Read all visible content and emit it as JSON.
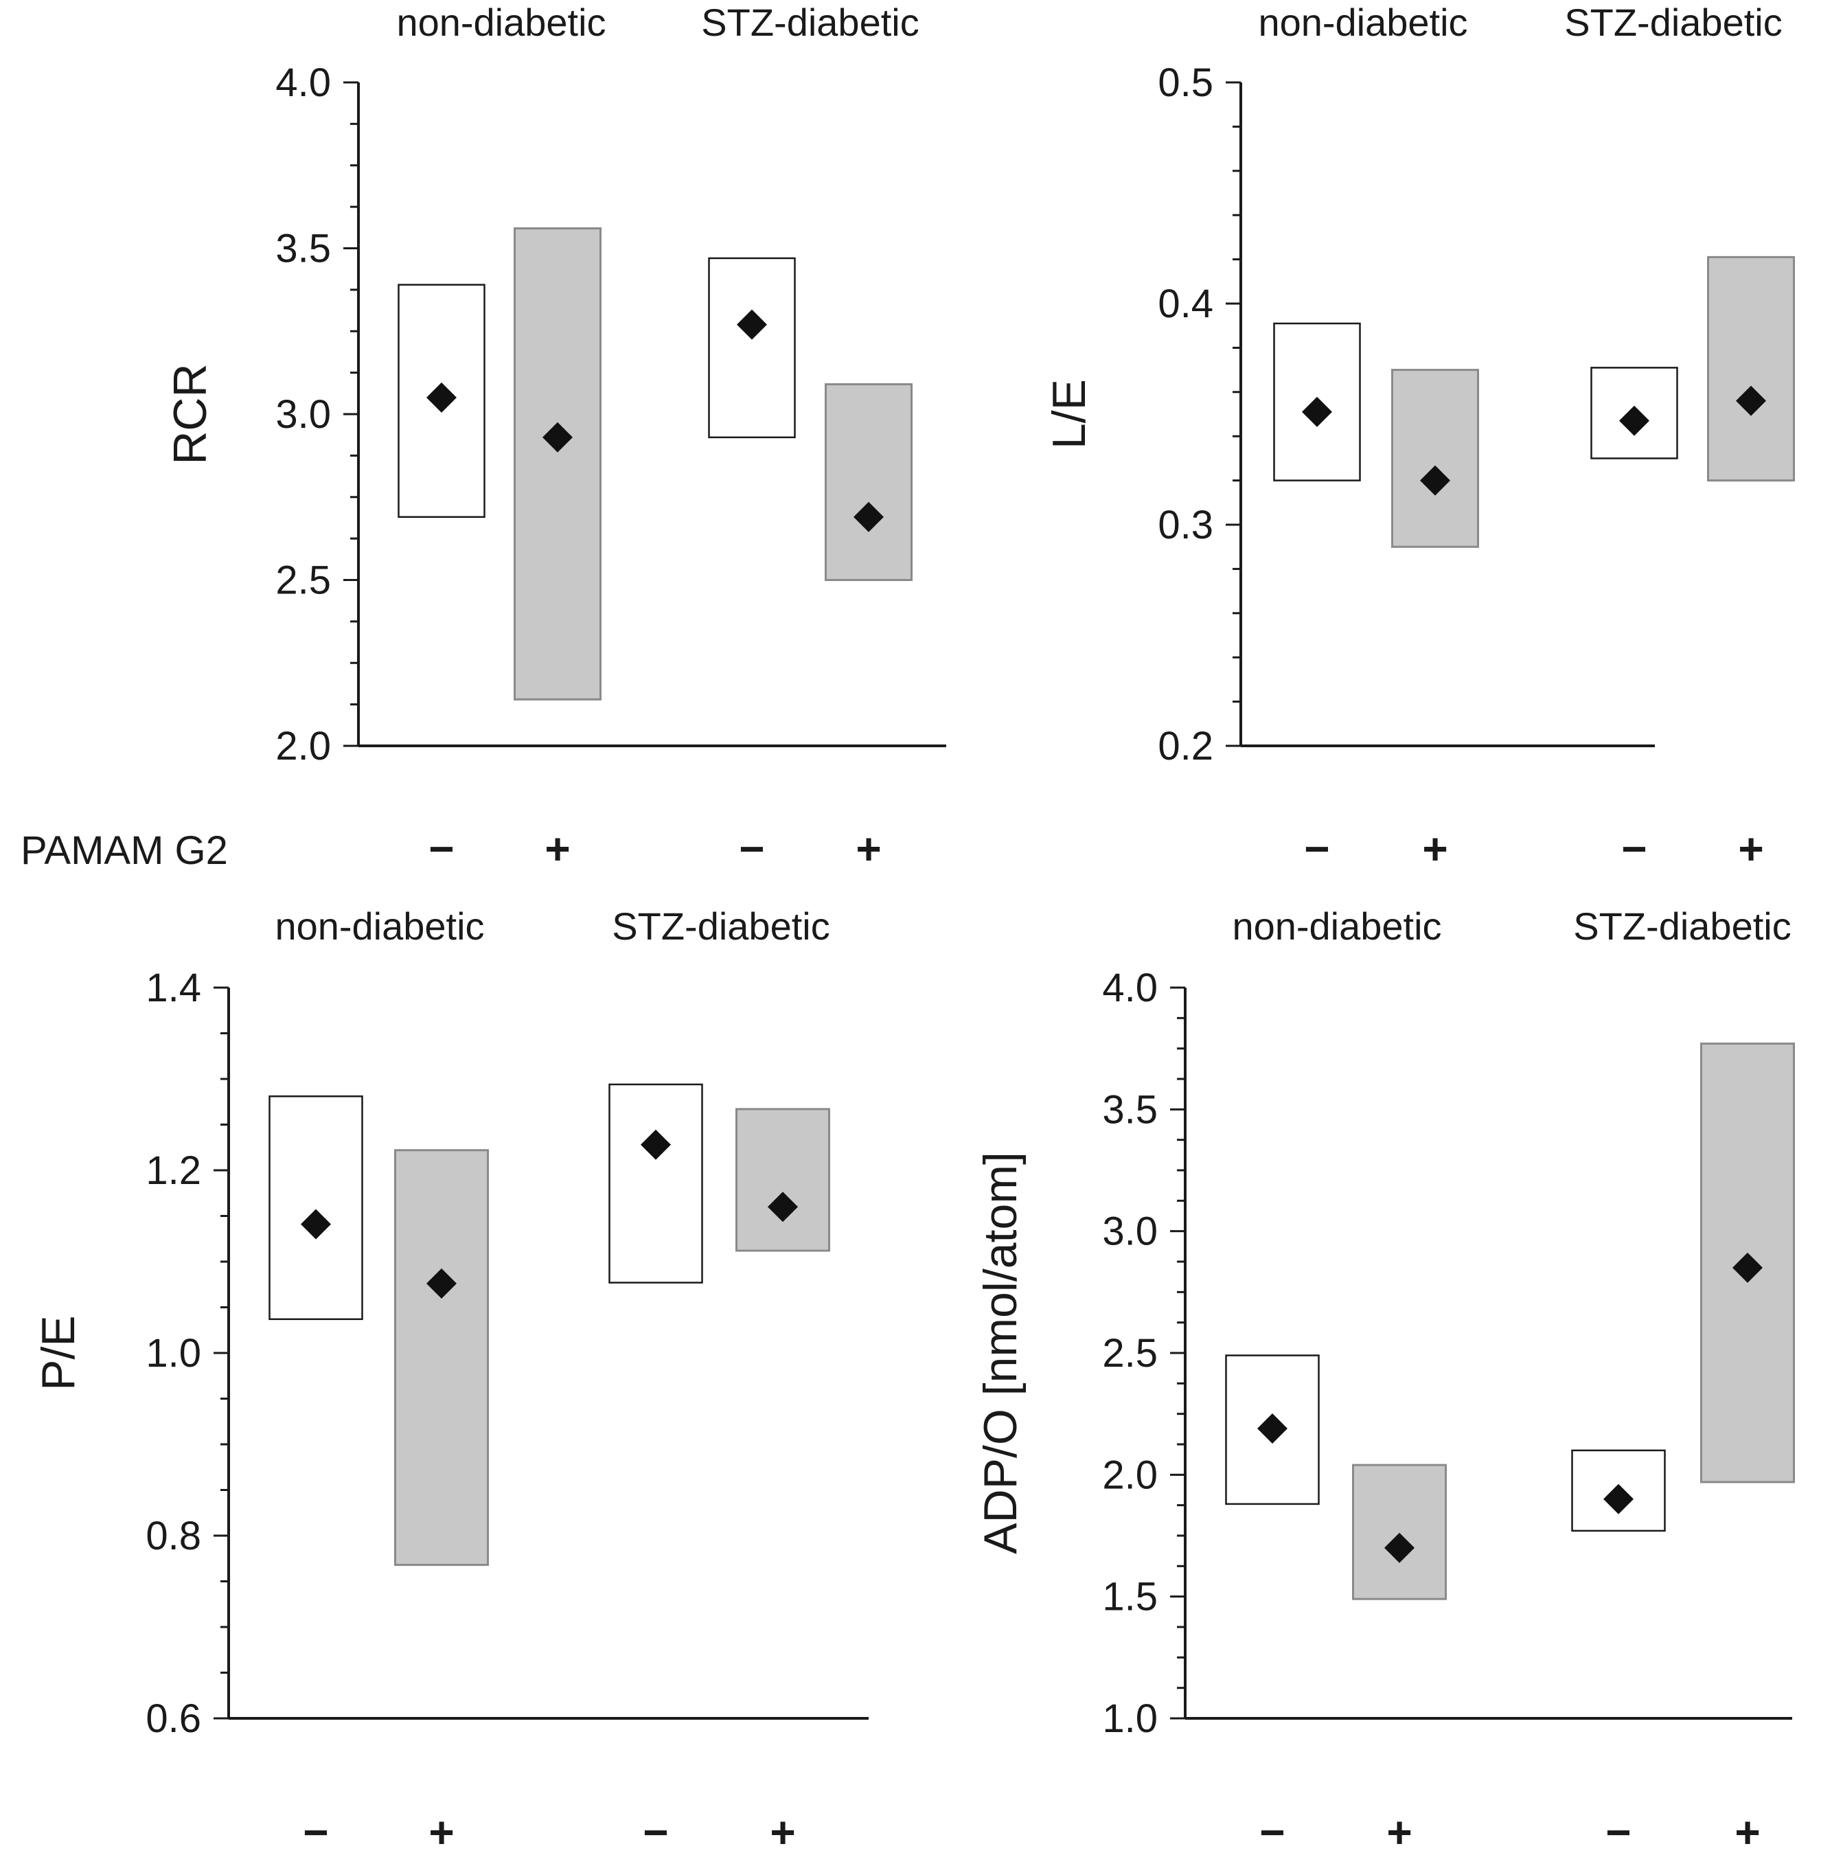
{
  "row_label": "PAMAM G2",
  "chart_data": [
    {
      "type": "box",
      "ylabel": "RCR",
      "ylim": [
        2.0,
        4.0
      ],
      "yticks": [
        "2.0",
        "2.5",
        "3.0",
        "3.5",
        "4.0"
      ],
      "groups": [
        "non-diabetic",
        "STZ-diabetic"
      ],
      "treatments": [
        "−",
        "+"
      ],
      "boxes": [
        {
          "group": "non-diabetic",
          "treatment": "−",
          "low": 2.69,
          "high": 3.39,
          "mean": 3.05,
          "color": "#ffffff"
        },
        {
          "group": "non-diabetic",
          "treatment": "+",
          "low": 2.14,
          "high": 3.56,
          "mean": 2.93,
          "color": "#c8c8c8"
        },
        {
          "group": "STZ-diabetic",
          "treatment": "−",
          "low": 2.93,
          "high": 3.47,
          "mean": 3.27,
          "color": "#ffffff"
        },
        {
          "group": "STZ-diabetic",
          "treatment": "+",
          "low": 2.5,
          "high": 3.09,
          "mean": 2.69,
          "color": "#c8c8c8"
        }
      ]
    },
    {
      "type": "box",
      "ylabel": "L/E",
      "ylim": [
        0.2,
        0.5
      ],
      "yticks": [
        "0.2",
        "0.3",
        "0.4",
        "0.5"
      ],
      "groups": [
        "non-diabetic",
        "STZ-diabetic"
      ],
      "treatments": [
        "−",
        "+"
      ],
      "boxes": [
        {
          "group": "non-diabetic",
          "treatment": "−",
          "low": 0.32,
          "high": 0.391,
          "mean": 0.351,
          "color": "#ffffff"
        },
        {
          "group": "non-diabetic",
          "treatment": "+",
          "low": 0.29,
          "high": 0.37,
          "mean": 0.32,
          "color": "#c8c8c8"
        },
        {
          "group": "STZ-diabetic",
          "treatment": "−",
          "low": 0.33,
          "high": 0.371,
          "mean": 0.347,
          "color": "#ffffff"
        },
        {
          "group": "STZ-diabetic",
          "treatment": "+",
          "low": 0.32,
          "high": 0.421,
          "mean": 0.356,
          "color": "#c8c8c8"
        }
      ]
    },
    {
      "type": "box",
      "ylabel": "P/E",
      "ylim": [
        0.6,
        1.4
      ],
      "yticks": [
        "0.6",
        "0.8",
        "1.0",
        "1.2",
        "1.4"
      ],
      "groups": [
        "non-diabetic",
        "STZ-diabetic"
      ],
      "treatments": [
        "−",
        "+"
      ],
      "boxes": [
        {
          "group": "non-diabetic",
          "treatment": "−",
          "low": 1.037,
          "high": 1.281,
          "mean": 1.141,
          "color": "#ffffff"
        },
        {
          "group": "non-diabetic",
          "treatment": "+",
          "low": 0.768,
          "high": 1.222,
          "mean": 1.076,
          "color": "#c8c8c8"
        },
        {
          "group": "STZ-diabetic",
          "treatment": "−",
          "low": 1.077,
          "high": 1.294,
          "mean": 1.228,
          "color": "#ffffff"
        },
        {
          "group": "STZ-diabetic",
          "treatment": "+",
          "low": 1.112,
          "high": 1.267,
          "mean": 1.16,
          "color": "#c8c8c8"
        }
      ]
    },
    {
      "type": "box",
      "ylabel": "ADP/O [nmol/atom]",
      "ylim": [
        1.0,
        4.0
      ],
      "yticks": [
        "1.0",
        "1.5",
        "2.0",
        "2.5",
        "3.0",
        "3.5",
        "4.0"
      ],
      "groups": [
        "non-diabetic",
        "STZ-diabetic"
      ],
      "treatments": [
        "−",
        "+"
      ],
      "boxes": [
        {
          "group": "non-diabetic",
          "treatment": "−",
          "low": 1.88,
          "high": 2.49,
          "mean": 2.19,
          "color": "#ffffff"
        },
        {
          "group": "non-diabetic",
          "treatment": "+",
          "low": 1.49,
          "high": 2.04,
          "mean": 1.7,
          "color": "#c8c8c8"
        },
        {
          "group": "STZ-diabetic",
          "treatment": "−",
          "low": 1.77,
          "high": 2.1,
          "mean": 1.9,
          "color": "#ffffff"
        },
        {
          "group": "STZ-diabetic",
          "treatment": "+",
          "low": 1.97,
          "high": 3.77,
          "mean": 2.85,
          "color": "#c8c8c8"
        }
      ]
    }
  ]
}
